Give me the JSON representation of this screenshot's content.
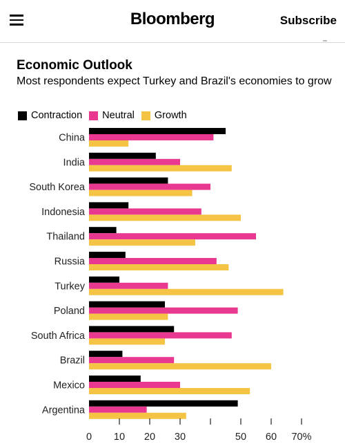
{
  "header": {
    "brand": "Bloomberg",
    "subscribe_label": "Subscribe"
  },
  "colors": {
    "contraction": "#000000",
    "neutral": "#e8388f",
    "growth": "#f5c445",
    "axis_text": "#222222"
  },
  "chart_data": {
    "type": "bar",
    "orientation": "horizontal",
    "title": "Economic Outlook",
    "subtitle": "Most respondents expect Turkey and Brazil's economies to grow",
    "categories": [
      "China",
      "India",
      "South Korea",
      "Indonesia",
      "Thailand",
      "Russia",
      "Turkey",
      "Poland",
      "South Africa",
      "Brazil",
      "Mexico",
      "Argentina"
    ],
    "series": [
      {
        "name": "Contraction",
        "values": [
          45,
          22,
          26,
          13,
          9,
          12,
          10,
          25,
          28,
          11,
          17,
          49
        ]
      },
      {
        "name": "Neutral",
        "values": [
          41,
          30,
          40,
          37,
          55,
          42,
          26,
          49,
          47,
          28,
          30,
          19
        ]
      },
      {
        "name": "Growth",
        "values": [
          13,
          47,
          34,
          50,
          35,
          46,
          64,
          26,
          25,
          60,
          53,
          32
        ]
      }
    ],
    "xlim": [
      0,
      70
    ],
    "xticks": [
      0,
      10,
      20,
      30,
      40,
      50,
      60,
      70
    ],
    "xtick_labels": [
      "0",
      "10",
      "20",
      "30",
      "",
      "50",
      "60",
      "70%"
    ],
    "legend_position": "top-left",
    "grid": false
  }
}
